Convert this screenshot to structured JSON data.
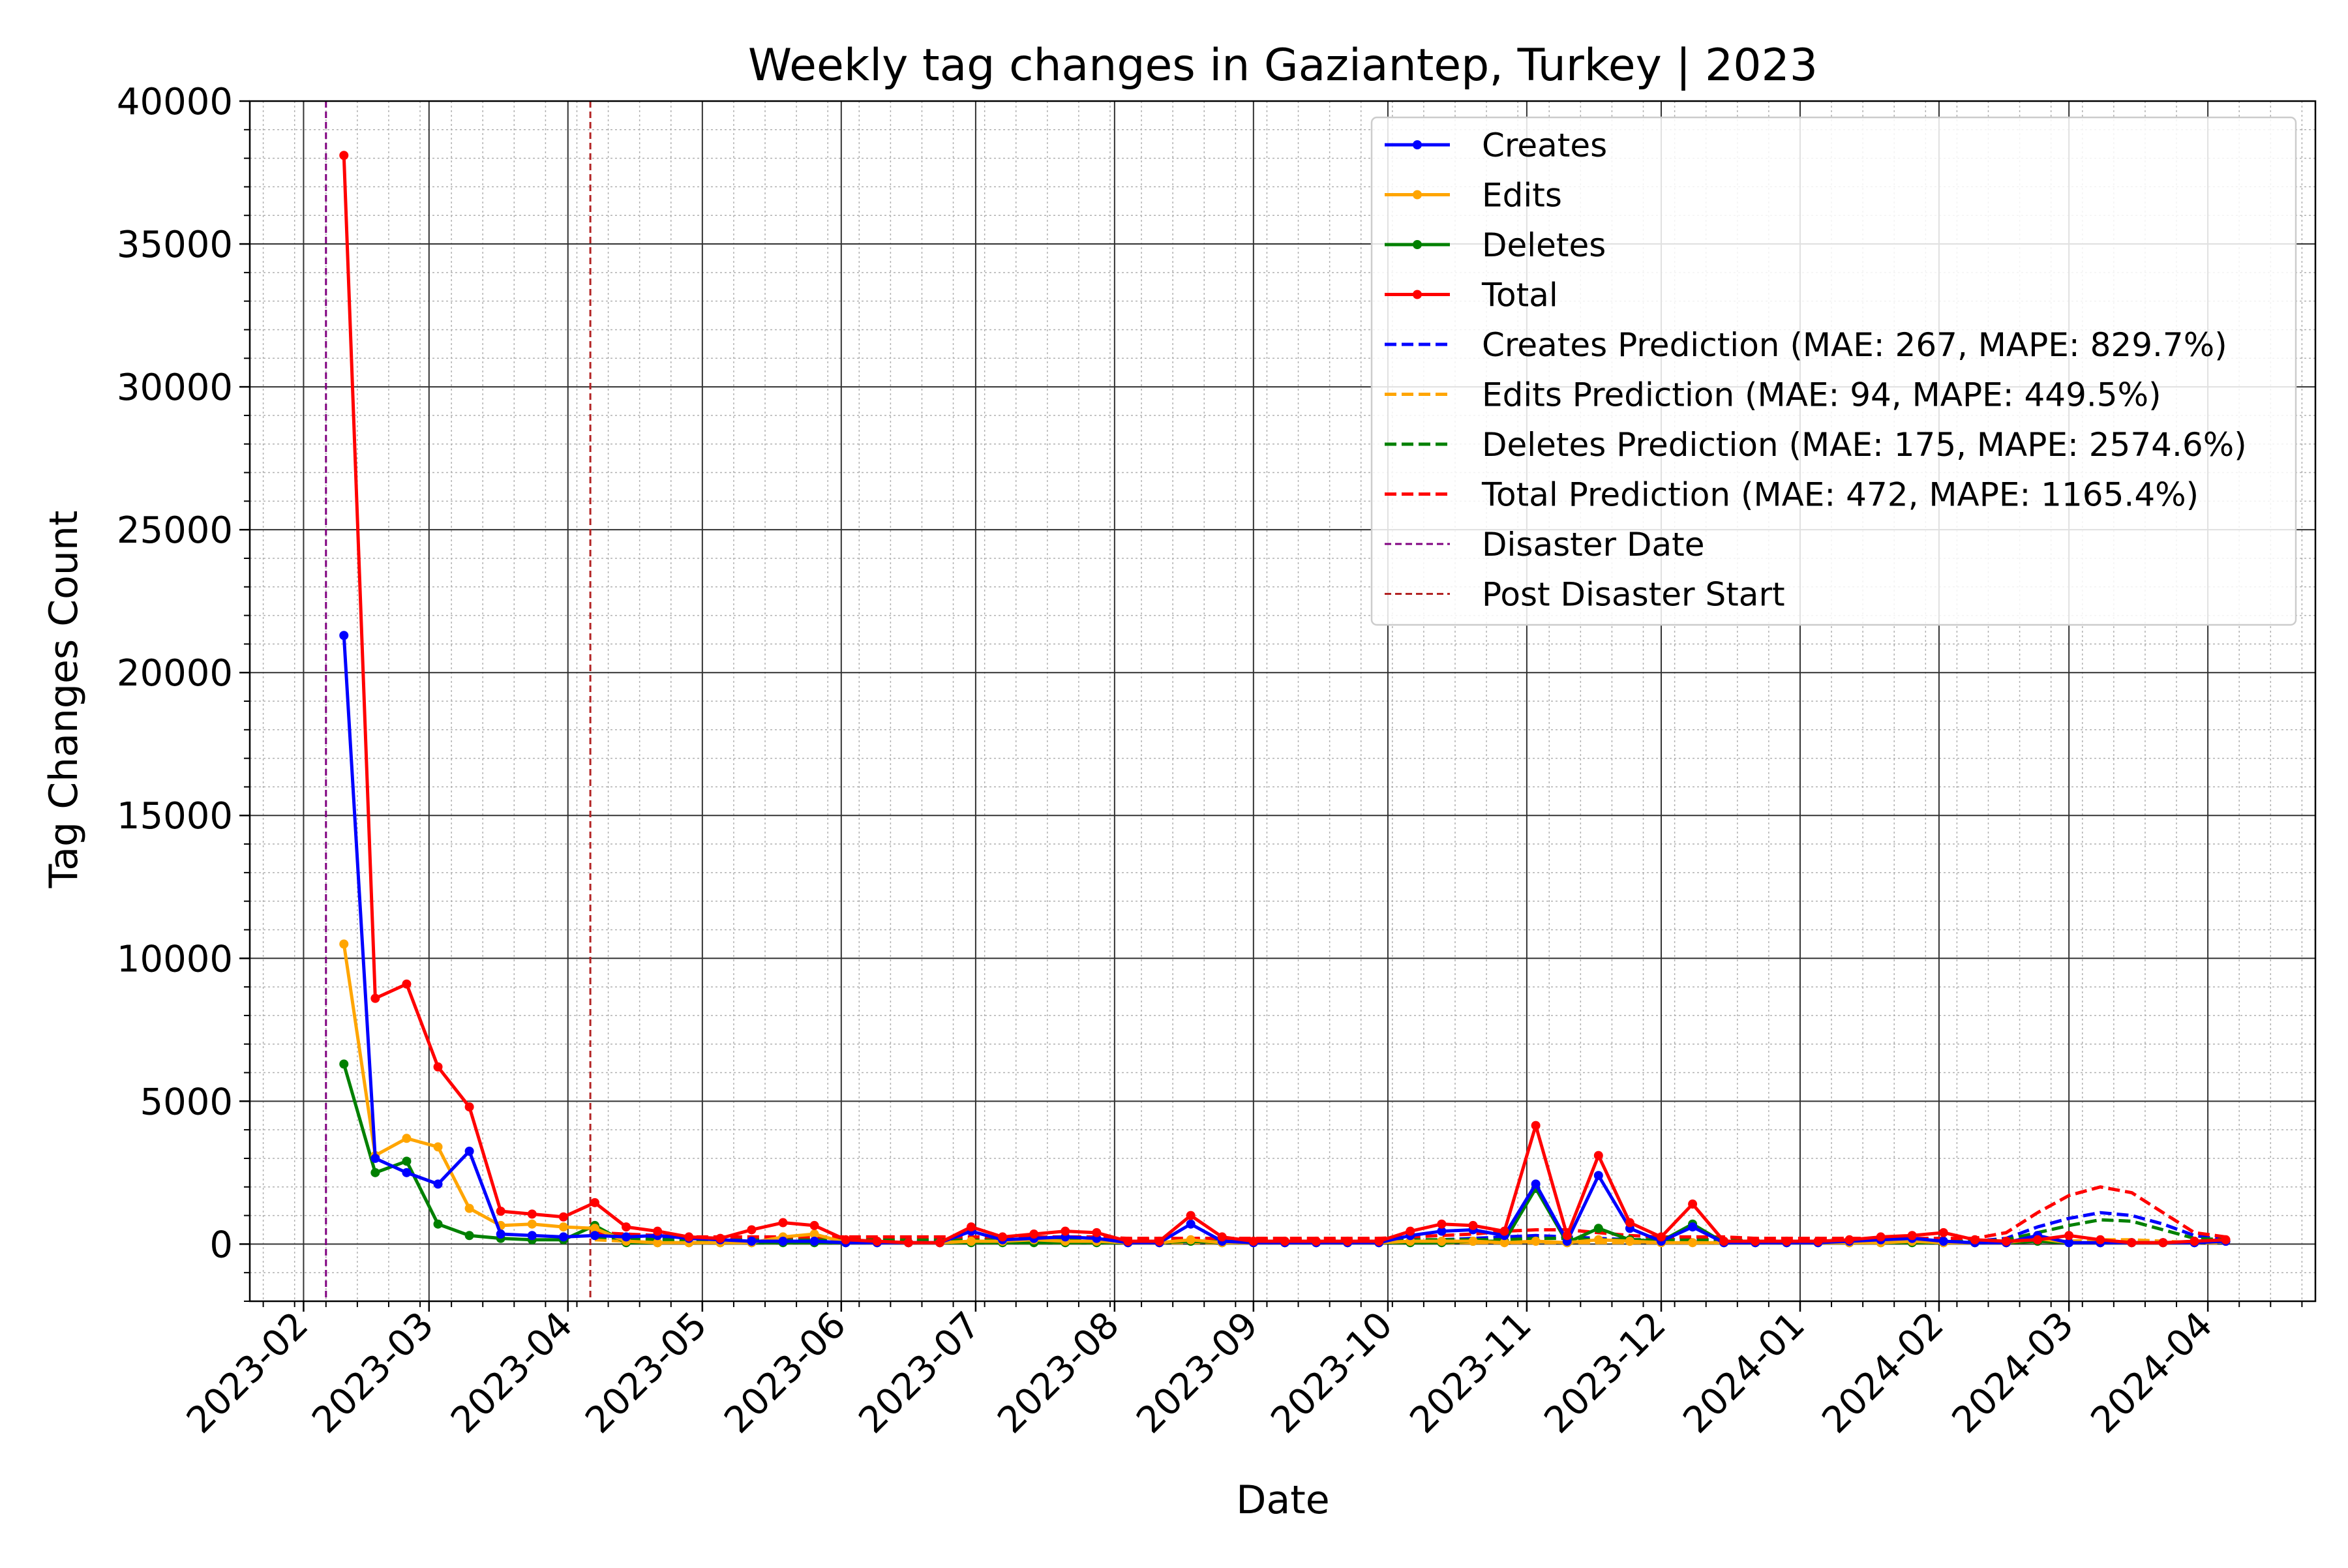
{
  "chart_data": {
    "type": "line",
    "title": "Weekly tag changes in Gaziantep, Turkey | 2023",
    "xlabel": "Date",
    "ylabel": "Tag Changes Count",
    "ylim": [
      -2000,
      40000
    ],
    "yticks": [
      0,
      5000,
      10000,
      15000,
      20000,
      25000,
      30000,
      35000,
      40000
    ],
    "xlim": [
      "2023-01-20",
      "2024-04-25"
    ],
    "xticks": [
      "2023-02",
      "2023-03",
      "2023-04",
      "2023-05",
      "2023-06",
      "2023-07",
      "2023-08",
      "2023-09",
      "2023-10",
      "2023-11",
      "2023-12",
      "2024-01",
      "2024-02",
      "2024-03",
      "2024-04"
    ],
    "grid": "major and minor",
    "legend_position": "top-right",
    "colors": {
      "creates": "#0000ff",
      "edits": "#ffa500",
      "deletes": "#008000",
      "total": "#ff0000",
      "disaster": "#800080",
      "post_disaster": "#b22222"
    },
    "legend": [
      "Creates",
      "Edits",
      "Deletes",
      "Total",
      "Creates Prediction (MAE: 267, MAPE: 829.7%)",
      "Edits Prediction (MAE: 94, MAPE: 449.5%)",
      "Deletes Prediction (MAE: 175, MAPE: 2574.6%)",
      "Total Prediction (MAE: 472, MAPE: 1165.4%)",
      "Disaster Date",
      "Post Disaster Start"
    ],
    "disaster_date": "2023-02-06",
    "post_disaster_start": "2023-04-06",
    "weeks": [
      "2023-02-10",
      "2023-02-17",
      "2023-02-24",
      "2023-03-03",
      "2023-03-10",
      "2023-03-17",
      "2023-03-24",
      "2023-03-31",
      "2023-04-07",
      "2023-04-14",
      "2023-04-21",
      "2023-04-28",
      "2023-05-05",
      "2023-05-12",
      "2023-05-19",
      "2023-05-26",
      "2023-06-02",
      "2023-06-09",
      "2023-06-16",
      "2023-06-23",
      "2023-06-30",
      "2023-07-07",
      "2023-07-14",
      "2023-07-21",
      "2023-07-28",
      "2023-08-04",
      "2023-08-11",
      "2023-08-18",
      "2023-08-25",
      "2023-09-01",
      "2023-09-08",
      "2023-09-15",
      "2023-09-22",
      "2023-09-29",
      "2023-10-06",
      "2023-10-13",
      "2023-10-20",
      "2023-10-27",
      "2023-11-03",
      "2023-11-10",
      "2023-11-17",
      "2023-11-24",
      "2023-12-01",
      "2023-12-08",
      "2023-12-15",
      "2023-12-22",
      "2023-12-29",
      "2024-01-05",
      "2024-01-12",
      "2024-01-19",
      "2024-01-26",
      "2024-02-02",
      "2024-02-09",
      "2024-02-16",
      "2024-02-23",
      "2024-03-01",
      "2024-03-08",
      "2024-03-15",
      "2024-03-22",
      "2024-03-29",
      "2024-04-05"
    ],
    "series": [
      {
        "name": "Creates",
        "key": "creates",
        "style": "solid",
        "values": [
          21300,
          3000,
          2500,
          2100,
          3250,
          350,
          300,
          250,
          300,
          250,
          300,
          200,
          150,
          100,
          100,
          100,
          50,
          50,
          50,
          50,
          450,
          150,
          200,
          250,
          200,
          50,
          50,
          700,
          100,
          50,
          50,
          50,
          50,
          50,
          300,
          450,
          500,
          300,
          2100,
          100,
          2400,
          550,
          100,
          600,
          50,
          50,
          50,
          50,
          100,
          150,
          200,
          100,
          50,
          50,
          300,
          50,
          50,
          50,
          50,
          50,
          100
        ]
      },
      {
        "name": "Edits",
        "key": "edits",
        "style": "solid",
        "values": [
          10500,
          3100,
          3700,
          3400,
          1250,
          650,
          700,
          600,
          550,
          100,
          50,
          50,
          50,
          50,
          250,
          350,
          50,
          50,
          50,
          50,
          100,
          100,
          150,
          100,
          100,
          50,
          50,
          150,
          50,
          50,
          50,
          50,
          50,
          50,
          100,
          100,
          100,
          50,
          100,
          50,
          150,
          100,
          50,
          50,
          50,
          50,
          50,
          50,
          50,
          50,
          100,
          50,
          50,
          50,
          200,
          50,
          50,
          50,
          50,
          50,
          100
        ]
      },
      {
        "name": "Deletes",
        "key": "deletes",
        "style": "solid",
        "values": [
          6300,
          2500,
          2900,
          700,
          300,
          200,
          150,
          150,
          650,
          50,
          50,
          50,
          50,
          50,
          50,
          50,
          50,
          50,
          50,
          50,
          50,
          50,
          50,
          50,
          50,
          50,
          50,
          100,
          50,
          50,
          50,
          50,
          50,
          50,
          50,
          50,
          100,
          100,
          1950,
          50,
          550,
          150,
          100,
          700,
          50,
          50,
          50,
          50,
          50,
          50,
          50,
          50,
          50,
          50,
          100,
          50,
          50,
          50,
          50,
          50,
          100
        ]
      },
      {
        "name": "Total",
        "key": "total",
        "style": "solid",
        "values": [
          38100,
          8600,
          9100,
          6200,
          4800,
          1150,
          1050,
          950,
          1450,
          600,
          450,
          250,
          200,
          500,
          750,
          650,
          150,
          100,
          50,
          50,
          600,
          250,
          350,
          450,
          400,
          100,
          100,
          1000,
          250,
          100,
          100,
          100,
          100,
          100,
          450,
          700,
          650,
          450,
          4150,
          300,
          3100,
          750,
          250,
          1400,
          100,
          100,
          100,
          100,
          150,
          250,
          300,
          400,
          150,
          100,
          150,
          300,
          150,
          50,
          50,
          100,
          150
        ]
      },
      {
        "name": "Creates Prediction (MAE: 267, MAPE: 829.7%)",
        "key": "creates",
        "style": "dashed",
        "values": [
          null,
          null,
          null,
          null,
          null,
          null,
          null,
          null,
          300,
          250,
          200,
          150,
          150,
          150,
          150,
          150,
          100,
          100,
          100,
          100,
          100,
          100,
          100,
          100,
          100,
          100,
          100,
          100,
          100,
          100,
          100,
          100,
          100,
          100,
          100,
          150,
          200,
          250,
          300,
          250,
          200,
          150,
          150,
          150,
          100,
          100,
          100,
          100,
          100,
          100,
          100,
          100,
          100,
          200,
          600,
          900,
          1100,
          1000,
          700,
          300,
          150
        ]
      },
      {
        "name": "Edits Prediction (MAE: 94, MAPE: 449.5%)",
        "key": "edits",
        "style": "dashed",
        "values": [
          null,
          null,
          null,
          null,
          null,
          null,
          null,
          null,
          150,
          100,
          100,
          50,
          50,
          50,
          50,
          50,
          50,
          50,
          50,
          50,
          50,
          50,
          50,
          50,
          50,
          50,
          50,
          50,
          50,
          50,
          50,
          50,
          50,
          50,
          50,
          50,
          50,
          50,
          50,
          50,
          50,
          50,
          50,
          50,
          50,
          50,
          50,
          50,
          50,
          50,
          50,
          50,
          50,
          50,
          100,
          100,
          150,
          150,
          100,
          50,
          50
        ]
      },
      {
        "name": "Deletes Prediction (MAE: 175, MAPE: 2574.6%)",
        "key": "deletes",
        "style": "dashed",
        "values": [
          null,
          null,
          null,
          null,
          null,
          null,
          null,
          null,
          250,
          200,
          150,
          150,
          150,
          150,
          150,
          150,
          150,
          150,
          150,
          150,
          150,
          150,
          150,
          150,
          150,
          150,
          150,
          150,
          150,
          150,
          150,
          150,
          150,
          150,
          150,
          150,
          150,
          150,
          200,
          200,
          150,
          150,
          150,
          150,
          150,
          100,
          100,
          100,
          100,
          100,
          100,
          100,
          100,
          150,
          400,
          650,
          850,
          800,
          500,
          200,
          150
        ]
      },
      {
        "name": "Total Prediction (MAE: 472, MAPE: 1165.4%)",
        "key": "total",
        "style": "dashed",
        "values": [
          null,
          null,
          null,
          null,
          null,
          null,
          null,
          null,
          400,
          350,
          300,
          250,
          250,
          250,
          250,
          250,
          250,
          250,
          250,
          250,
          250,
          250,
          250,
          250,
          250,
          200,
          200,
          200,
          200,
          200,
          200,
          200,
          200,
          200,
          250,
          300,
          350,
          450,
          500,
          500,
          400,
          300,
          250,
          250,
          250,
          200,
          200,
          200,
          200,
          200,
          200,
          200,
          200,
          400,
          1100,
          1700,
          2000,
          1800,
          1100,
          400,
          250
        ]
      }
    ]
  }
}
